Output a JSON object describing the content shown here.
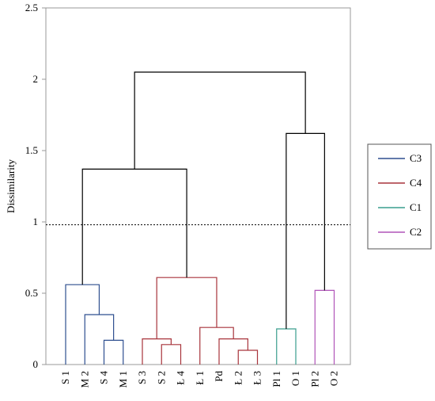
{
  "chart_data": {
    "type": "dendrogram",
    "ylabel": "Dissimilarity",
    "ylim": [
      0,
      2.5
    ],
    "y_ticks": [
      "0",
      "0.5",
      "1",
      "1.5",
      "2",
      "2.5"
    ],
    "cut_line": 0.98,
    "leaves": [
      "S 1",
      "M 2",
      "S 4",
      "M 1",
      "S 3",
      "S 2",
      "Ł 4",
      "Ł 1",
      "Pd",
      "Ł 2",
      "Ł 3",
      "Pl 1",
      "O 1",
      "Pl 2",
      "O 2"
    ],
    "merges": [
      {
        "id": "m1",
        "left": "S 4",
        "right": "M 1",
        "height": 0.17,
        "cluster": "C3"
      },
      {
        "id": "m2",
        "left": "M 2",
        "right": "m1",
        "height": 0.35,
        "cluster": "C3"
      },
      {
        "id": "m3",
        "left": "S 1",
        "right": "m2",
        "height": 0.56,
        "cluster": "C3"
      },
      {
        "id": "m4",
        "left": "S 2",
        "right": "Ł 4",
        "height": 0.14,
        "cluster": "C4"
      },
      {
        "id": "m5",
        "left": "S 3",
        "right": "m4",
        "height": 0.18,
        "cluster": "C4"
      },
      {
        "id": "m6",
        "left": "Ł 2",
        "right": "Ł 3",
        "height": 0.1,
        "cluster": "C4"
      },
      {
        "id": "m7",
        "left": "Pd",
        "right": "m6",
        "height": 0.18,
        "cluster": "C4"
      },
      {
        "id": "m8",
        "left": "Ł 1",
        "right": "m7",
        "height": 0.26,
        "cluster": "C4"
      },
      {
        "id": "m9",
        "left": "m5",
        "right": "m8",
        "height": 0.61,
        "cluster": "C4"
      },
      {
        "id": "m10",
        "left": "Pl 1",
        "right": "O 1",
        "height": 0.25,
        "cluster": "C1"
      },
      {
        "id": "m11",
        "left": "Pl 2",
        "right": "O 2",
        "height": 0.52,
        "cluster": "C2"
      },
      {
        "id": "m12",
        "left": "m3",
        "right": "m9",
        "height": 1.37,
        "cluster": "root"
      },
      {
        "id": "m13",
        "left": "m10",
        "right": "m11",
        "height": 1.62,
        "cluster": "root"
      },
      {
        "id": "m14",
        "left": "m12",
        "right": "m13",
        "height": 2.05,
        "cluster": "root"
      }
    ],
    "legend": {
      "placement": "right",
      "entries": [
        {
          "name": "C3",
          "color": "#2e4f8f"
        },
        {
          "name": "C4",
          "color": "#a8343b"
        },
        {
          "name": "C1",
          "color": "#3a9e8e"
        },
        {
          "name": "C2",
          "color": "#b054b8"
        }
      ]
    },
    "root_color": "#000000"
  }
}
